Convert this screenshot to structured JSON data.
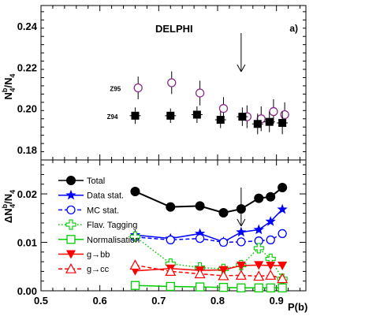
{
  "figure": {
    "experiment": "DELPHI",
    "panel_label": "a)",
    "x_axis_label": "P(b)",
    "top_y_label": "N4b/N4",
    "bottom_y_label": "ΔN4b/N4",
    "colors": {
      "black": "#000000",
      "blue": "#0000ff",
      "green": "#00cc00",
      "red": "#ff0000",
      "purple": "#8a2b8a"
    }
  },
  "chart_data": [
    {
      "type": "scatter",
      "panel": "top",
      "ylabel": "N4b/N4",
      "xlim": [
        0.5,
        0.95
      ],
      "ylim": [
        0.175,
        0.25
      ],
      "x_ticks": [
        "0.5",
        "0.6",
        "0.7",
        "0.8",
        "0.9"
      ],
      "x_tick_values": [
        0.5,
        0.6,
        0.7,
        0.8,
        0.9
      ],
      "y_ticks": [
        "0.18",
        "0.20",
        "0.22",
        "0.24"
      ],
      "y_tick_values": [
        0.18,
        0.2,
        0.22,
        0.24
      ],
      "arrow_x": 0.84,
      "series": [
        {
          "name": "Z95",
          "marker": "open-circle",
          "color": "#8a2b8a",
          "points": [
            {
              "x": 0.665,
              "y": 0.21,
              "err": 0.0055
            },
            {
              "x": 0.722,
              "y": 0.2125,
              "err": 0.0055
            },
            {
              "x": 0.77,
              "y": 0.2075,
              "err": 0.006
            },
            {
              "x": 0.81,
              "y": 0.2,
              "err": 0.0055
            },
            {
              "x": 0.85,
              "y": 0.196,
              "err": 0.0055
            },
            {
              "x": 0.874,
              "y": 0.195,
              "err": 0.006
            },
            {
              "x": 0.895,
              "y": 0.1985,
              "err": 0.006
            },
            {
              "x": 0.914,
              "y": 0.197,
              "err": 0.006
            }
          ]
        },
        {
          "name": "Z94",
          "marker": "filled-square",
          "color": "#000000",
          "points": [
            {
              "x": 0.66,
              "y": 0.1965,
              "err": 0.004
            },
            {
              "x": 0.72,
              "y": 0.1965,
              "err": 0.0035
            },
            {
              "x": 0.765,
              "y": 0.197,
              "err": 0.004
            },
            {
              "x": 0.805,
              "y": 0.1945,
              "err": 0.004
            },
            {
              "x": 0.842,
              "y": 0.196,
              "err": 0.0045
            },
            {
              "x": 0.868,
              "y": 0.1925,
              "err": 0.005
            },
            {
              "x": 0.888,
              "y": 0.1935,
              "err": 0.005
            },
            {
              "x": 0.91,
              "y": 0.193,
              "err": 0.0055
            }
          ]
        }
      ]
    },
    {
      "type": "line",
      "panel": "bottom",
      "xlabel": "P(b)",
      "ylabel": "ΔN4b/N4",
      "xlim": [
        0.5,
        0.95
      ],
      "ylim": [
        0.0,
        0.027
      ],
      "x_ticks": [
        "0.5",
        "0.6",
        "0.7",
        "0.8",
        "0.9"
      ],
      "x_tick_values": [
        0.5,
        0.6,
        0.7,
        0.8,
        0.9
      ],
      "y_ticks": [
        "0.00",
        "0.01",
        "0.02"
      ],
      "y_tick_values": [
        0.0,
        0.01,
        0.02
      ],
      "arrow_x": 0.84,
      "x": [
        0.66,
        0.72,
        0.77,
        0.81,
        0.84,
        0.87,
        0.89,
        0.91
      ],
      "series": [
        {
          "name": "Total",
          "marker": "filled-circle",
          "line": "solid",
          "color": "#000000",
          "values": [
            0.0205,
            0.0173,
            0.0175,
            0.0161,
            0.0169,
            0.0191,
            0.0194,
            0.0213
          ]
        },
        {
          "name": "Data stat.",
          "marker": "filled-star",
          "line": "solid",
          "color": "#0000ff",
          "values": [
            0.0115,
            0.0108,
            0.0118,
            0.0101,
            0.0121,
            0.0126,
            0.0143,
            0.0168
          ]
        },
        {
          "name": "MC stat.",
          "marker": "open-circle",
          "line": "dashed",
          "color": "#0000ff",
          "values": [
            0.0111,
            0.0105,
            0.0108,
            0.01,
            0.0101,
            0.0103,
            0.0105,
            0.0118
          ]
        },
        {
          "name": "Flav. Tagging",
          "marker": "open-cross",
          "line": "dotted",
          "color": "#00cc00",
          "values": [
            0.0112,
            0.0056,
            0.0048,
            0.0045,
            0.0053,
            0.0088,
            0.0066,
            0.0025
          ]
        },
        {
          "name": "Normalisation",
          "marker": "open-square",
          "line": "solid",
          "color": "#00cc00",
          "values": [
            0.0011,
            0.0009,
            0.0008,
            0.0007,
            0.0006,
            0.0006,
            0.0006,
            0.0006
          ]
        },
        {
          "name": "g→bb",
          "marker": "filled-triangle-down",
          "line": "solid",
          "color": "#ff0000",
          "values": [
            0.0041,
            0.0046,
            0.0042,
            0.0043,
            0.0052,
            0.0053,
            0.0052,
            0.0052
          ]
        },
        {
          "name": "g→cc",
          "marker": "open-triangle-up",
          "line": "dashed",
          "color": "#ff0000",
          "values": [
            0.0053,
            0.004,
            0.0035,
            0.0031,
            0.0032,
            0.003,
            0.0032,
            0.0025
          ]
        }
      ]
    }
  ]
}
